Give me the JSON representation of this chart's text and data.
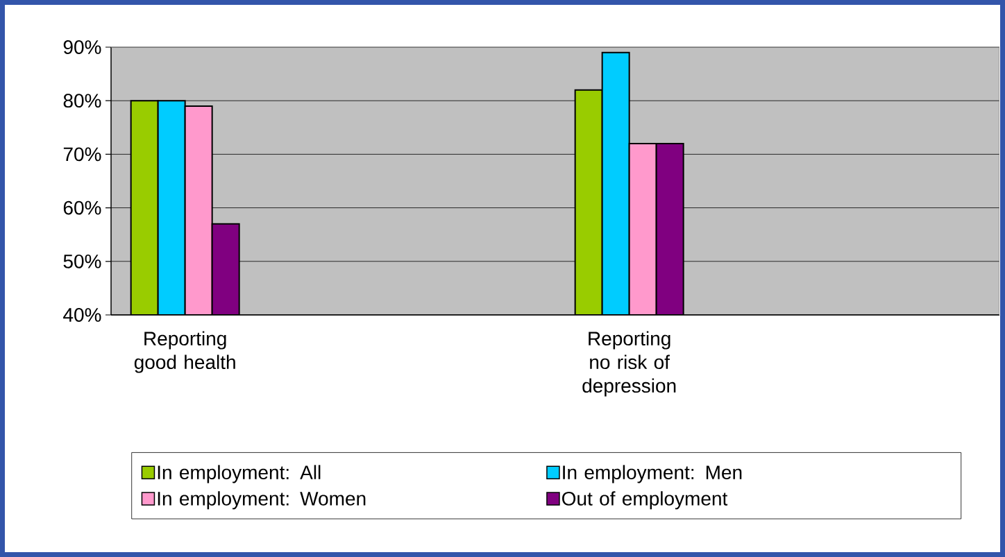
{
  "chart_data": {
    "type": "bar",
    "categories": [
      "Reporting good health",
      null,
      null,
      "Reporting no risk of depression",
      null,
      null
    ],
    "series": [
      {
        "name": "In employment: All",
        "color": "#99cc00",
        "values": [
          80,
          null,
          null,
          82,
          null,
          null
        ]
      },
      {
        "name": "In employment: Men",
        "color": "#00ccff",
        "values": [
          80,
          null,
          null,
          89,
          null,
          null
        ]
      },
      {
        "name": "In employment: Women",
        "color": "#ff99cc",
        "values": [
          79,
          null,
          null,
          72,
          null,
          null
        ]
      },
      {
        "name": "Out of employment",
        "color": "#800080",
        "values": [
          57,
          null,
          null,
          72,
          null,
          null
        ]
      }
    ],
    "ylim": [
      40,
      90
    ],
    "yticks": [
      {
        "value": 40,
        "label": "40%"
      },
      {
        "value": 50,
        "label": "50%"
      },
      {
        "value": 60,
        "label": "60%"
      },
      {
        "value": 70,
        "label": "70%"
      },
      {
        "value": 80,
        "label": "80%"
      },
      {
        "value": 90,
        "label": "90%"
      }
    ],
    "grid": "y",
    "legend": "bottom"
  }
}
